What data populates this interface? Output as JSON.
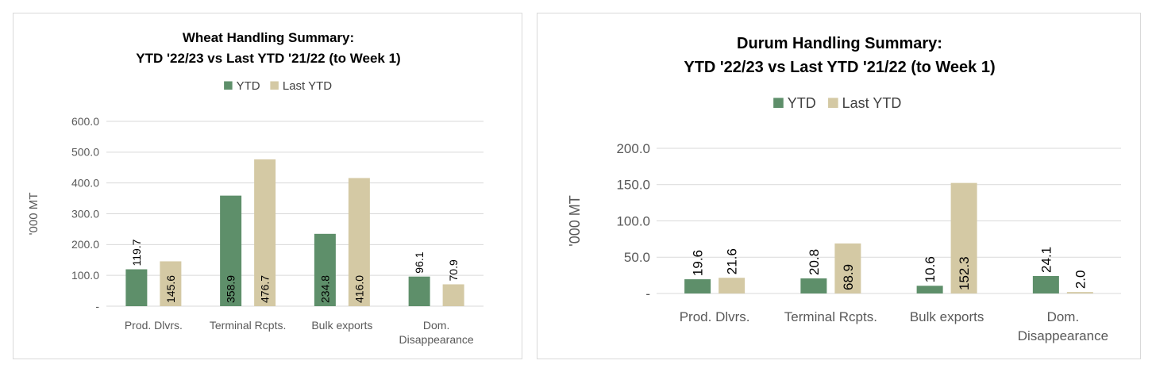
{
  "chart_data": [
    {
      "type": "bar",
      "title": "Wheat Handling Summary:",
      "subtitle": "YTD '22/23 vs Last YTD '21/22 (to Week 1)",
      "ylabel": "'000 MT",
      "xlabel": "",
      "categories": [
        "Prod. Dlvrs.",
        "Terminal Rcpts.",
        "Bulk exports",
        "Dom. Disappearance"
      ],
      "series": [
        {
          "name": "YTD",
          "values": [
            119.7,
            358.9,
            234.8,
            96.1
          ],
          "color": "#5e8f6a"
        },
        {
          "name": "Last YTD",
          "values": [
            145.6,
            476.7,
            416.0,
            70.9
          ],
          "color": "#d4c9a4"
        }
      ],
      "data_labels": [
        [
          "119.7",
          "358.9",
          "234.8",
          "96.1"
        ],
        [
          "145.6",
          "476.7",
          "416.0",
          "70.9"
        ]
      ],
      "ylim": [
        0,
        600
      ],
      "yticks": [
        0,
        100,
        200,
        300,
        400,
        500,
        600
      ],
      "ytick_labels": [
        "-",
        "100.0",
        "200.0",
        "300.0",
        "400.0",
        "500.0",
        "600.0"
      ],
      "grid": true,
      "legend": "top-center"
    },
    {
      "type": "bar",
      "title": "Durum Handling Summary:",
      "subtitle": "YTD '22/23 vs Last YTD '21/22 (to Week 1)",
      "ylabel": "'000 MT",
      "xlabel": "",
      "categories": [
        "Prod. Dlvrs.",
        "Terminal Rcpts.",
        "Bulk exports",
        "Dom. Disappearance"
      ],
      "series": [
        {
          "name": "YTD",
          "values": [
            19.6,
            20.8,
            10.6,
            24.1
          ],
          "color": "#5e8f6a"
        },
        {
          "name": "Last YTD",
          "values": [
            21.6,
            68.9,
            152.3,
            2.0
          ],
          "color": "#d4c9a4"
        }
      ],
      "data_labels": [
        [
          "19.6",
          "20.8",
          "10.6",
          "24.1"
        ],
        [
          "21.6",
          "68.9",
          "152.3",
          "2.0"
        ]
      ],
      "ylim": [
        0,
        200
      ],
      "yticks": [
        0,
        50,
        100,
        150,
        200
      ],
      "ytick_labels": [
        "-",
        "50.0",
        "100.0",
        "150.0",
        "200.0"
      ],
      "grid": true,
      "legend": "top-center"
    }
  ]
}
